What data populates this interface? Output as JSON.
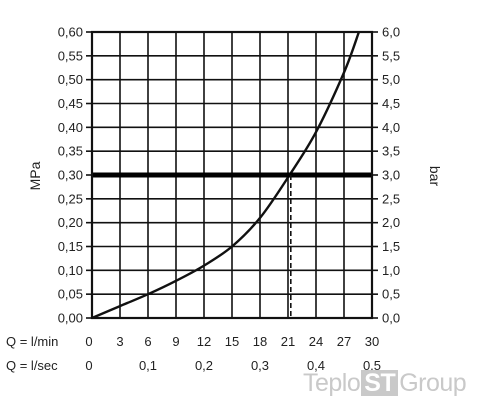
{
  "chart_data": {
    "type": "line",
    "title": "",
    "ylabel_left": "MPa",
    "ylabel_right": "bar",
    "x_axis_rows": [
      {
        "label": "Q = l/min",
        "ticks": [
          "0",
          "3",
          "6",
          "9",
          "12",
          "15",
          "18",
          "21",
          "24",
          "27",
          "30"
        ],
        "unit_range": [
          0,
          30
        ]
      },
      {
        "label": "Q = l/sec",
        "ticks": [
          "0",
          "0,1",
          "0,2",
          "0,3",
          "0,4",
          "0,5"
        ],
        "unit_range": [
          0,
          0.5
        ]
      }
    ],
    "xlim": [
      0,
      30
    ],
    "ylim": [
      0,
      0.6
    ],
    "y_ticks_left": [
      "0,00",
      "0,05",
      "0,10",
      "0,15",
      "0,20",
      "0,25",
      "0,30",
      "0,35",
      "0,40",
      "0,45",
      "0,50",
      "0,55",
      "0,60"
    ],
    "y_ticks_right": [
      "0,0",
      "0,5",
      "1,0",
      "1,5",
      "2,0",
      "2,5",
      "3,0",
      "3,5",
      "4,0",
      "4,5",
      "5,0",
      "5,5",
      "6,0"
    ],
    "grid": true,
    "series": [
      {
        "x": [
          0,
          3,
          6,
          9,
          12,
          15,
          18,
          21,
          24,
          27,
          28.6
        ],
        "y": [
          0,
          0.025,
          0.05,
          0.078,
          0.11,
          0.15,
          0.21,
          0.295,
          0.39,
          0.515,
          0.6
        ]
      }
    ],
    "reference_line": {
      "y": 0.3
    },
    "marker_line": {
      "x": 21.3,
      "y": 0.3
    }
  },
  "watermark": {
    "before": "Teplo",
    "highlight": "ST",
    "after": "Group"
  }
}
